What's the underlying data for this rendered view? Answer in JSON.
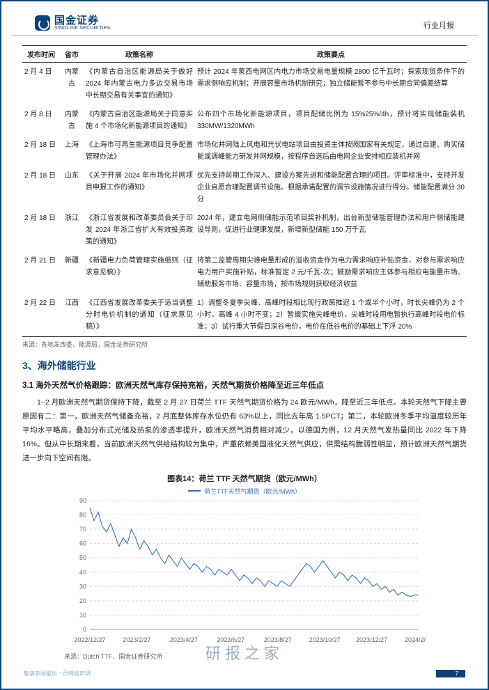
{
  "header": {
    "logo_cn": "国金证券",
    "logo_en": "SINOLINK SECURITIES",
    "doc_type": "行业月报"
  },
  "policy_table": {
    "headers": [
      "发布时间",
      "省市",
      "政策名称",
      "政策要点"
    ],
    "rows": [
      {
        "date": "2 月 4 日",
        "prov": "内蒙古",
        "name": "《内蒙古自治区能源局关于做好 2024 年内蒙古电力多边交易市场中长期交易有关事宜的通知》",
        "key": "预计 2024 年蒙西电网区内电力市场交易电量规模 2800 亿千瓦时；探索现货条件下的需求侧响应机制；开展容量市场机制研究；独立储能暂不参与中长期合同偏差结算"
      },
      {
        "date": "2 月 8 日",
        "prov": "内蒙古",
        "name": "《内蒙古自治区能源局关于同意实施 4 个市场化新能源项目的通知》",
        "key": "公布四个市场化新能源项目，项目配储比例为 15%25%/4h，预计将实现储能装机 330MW/1320MWh"
      },
      {
        "date": "2 月 18 日",
        "prov": "上海",
        "name": "《上海市可再生能源项目竞争配置管理办法》",
        "key": "市场化并网陆上风电和光伏电站项目由投资主体按照国家有关规定，通过自建、购买储能或调峰能力研发并网规模，按程序自选后由电网企业安排相应装机并网"
      },
      {
        "date": "2 月 18 日",
        "prov": "山东",
        "name": "《关于开展 2024 年市场化并网项目申报工作的通知》",
        "key": "优先支持前期工作深入、建设方案先进和储能配置合理的项目。评审标准中，支持开发企业自愿合理配置调节设施。根据承诺配置的调节设施情况进行得分。储能配置满分 30 分"
      },
      {
        "date": "2 月 18 日",
        "prov": "浙江",
        "name": "《浙江省发展和改革委员会关于印发 2024 年浙江省扩大有效投资政策的通知》",
        "key": "2024 年，建立电网侧储能示范项目奖补机制，出台新型储能管理办法和用户侧储能建设导则，促进行业健康发展，新增新型储能 150 万千瓦"
      },
      {
        "date": "2 月 21 日",
        "prov": "新疆",
        "name": "《新疆电力负荷管理实施细则（征求意见稿）》",
        "key": "将第二监管周期尖峰电量形成的溢收资金作为电力需求响应补贴资金，对参与需求响应电力用户实施补贴，标准暂定 2 元/千瓦·次；鼓励需求响应主体参与相应电能量市场、辅助服务市场、容量市场，按市场规则获取经济收益"
      },
      {
        "date": "2 月 22 日",
        "prov": "江西",
        "name": "《江西省发展改革委关于适当调整分时电价机制的通知（征求意见稿）》",
        "key": "1）调整冬夏季尖峰、高峰时段相比现行政策推迟 1 个或半个小时，时长尖峰仍为 2 个小时，高峰 4 小时不变；2）暂缓实施尖峰电价，尖峰时段用电暂执行高峰时段电价标准；3）试行重大节假日深谷电价，电价在低谷电价的基础上下浮 20%"
      }
    ],
    "source": "来源：各地发改委、能源局，国金证券研究所"
  },
  "section": {
    "title": "3、海外储能行业",
    "sub": "3.1 海外天然气价格跟踪：欧洲天然气库存保持充裕，天然气期货价格降至近三年低点",
    "body": "1~2 月欧洲天然气期货保持下降，截至 2 月 27 日荷兰 TTF 天然气期货价格为 24 欧元/MWh，降至近三年低点。本轮天然气下降主要原因有二：第一，欧洲天然气储备充裕，2 月底整体库存水位仍有 63%以上，同比去年高 1.5PCT；第二，本轮欧洲冬季平均温度较历年平均水平略高，叠加分布式光储及热泵的渗透率提升，欧洲天然气消费相对减少，以德国为例，12 月天然气发热量同比 2022 年下降 16%。但从中长期来看，当前欧洲天然气供给结构较为集中，严重依赖美国液化天然气供应，供需结构脆弱性明显，预计欧洲天然气期货进一步向下空间有限。"
  },
  "chart": {
    "title": "图表14：荷兰 TTF 天然气期货（欧元/MWh）",
    "legend": "荷兰TTF天然气期货（欧元/MWh）",
    "source": "来源：Dutch TTF，国金证券研究所",
    "type": "line",
    "line_color": "#3a6fb5",
    "background_color": "#ffffff",
    "grid_color": "#d9d9d9",
    "ylim": [
      0,
      90
    ],
    "ytick_step": 10,
    "yticks": [
      0,
      10,
      20,
      30,
      40,
      50,
      60,
      70,
      80,
      90
    ],
    "x_labels": [
      "2022/12/27",
      "2023/2/27",
      "2023/4/27",
      "2023/6/27",
      "2023/8/27",
      "2023/10/27",
      "2023/12/27",
      "2024/2/27"
    ],
    "data": [
      85,
      76,
      82,
      72,
      68,
      74,
      66,
      58,
      64,
      60,
      70,
      64,
      56,
      62,
      58,
      52,
      56,
      50,
      46,
      52,
      48,
      44,
      50,
      46,
      42,
      46,
      44,
      40,
      44,
      42,
      38,
      42,
      40,
      38,
      42,
      38,
      34,
      38,
      36,
      32,
      36,
      34,
      30,
      34,
      32,
      30,
      34,
      32,
      30,
      34,
      38,
      42,
      46,
      44,
      40,
      44,
      48,
      44,
      40,
      36,
      40,
      38,
      34,
      38,
      36,
      32,
      36,
      34,
      30,
      32,
      28,
      30,
      26,
      28,
      24,
      26,
      24,
      23,
      24,
      24
    ],
    "label_fontsize": 9,
    "line_width": 1.1
  },
  "footer": {
    "disclaimer": "敬请参阅最后一页特别声明",
    "page": "7"
  },
  "watermark": {
    "l1": "研报之家"
  }
}
